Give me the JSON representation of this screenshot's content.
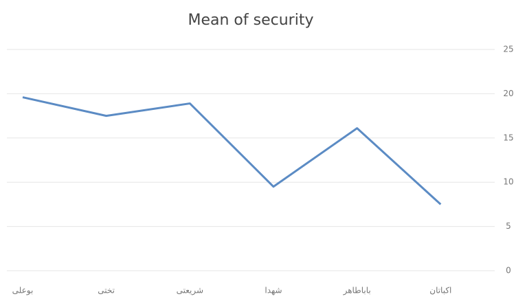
{
  "chart_data": {
    "type": "line",
    "title": "Mean of security",
    "categories": [
      "بوعلی",
      "تختی",
      "شریعتی",
      "شهدا",
      "باباطاهر",
      "اکباتان"
    ],
    "series": [
      {
        "name": "Mean of security",
        "color": "#5b8bc4",
        "values": [
          19.6,
          17.5,
          18.9,
          9.5,
          16.1,
          7.5
        ]
      }
    ],
    "ylim": [
      0,
      25
    ],
    "yticks": [
      0,
      5,
      10,
      15,
      20,
      25
    ],
    "grid": true,
    "y_axis_side": "right"
  }
}
